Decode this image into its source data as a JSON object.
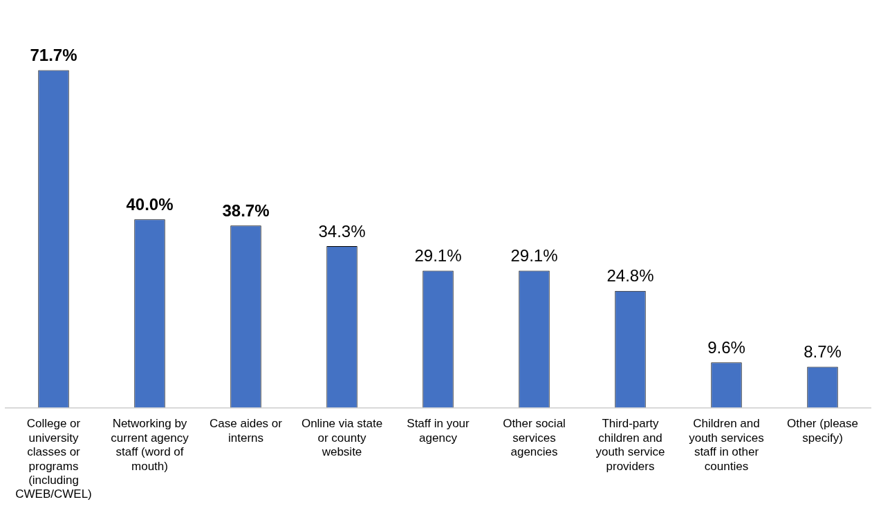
{
  "chart_data": {
    "type": "bar",
    "categories": [
      "College or university classes or programs (including CWEB/CWEL)",
      "Networking by current agency staff (word of mouth)",
      "Case aides or interns",
      "Online via state or county website",
      "Staff in your agency",
      "Other social services agencies",
      "Third-party children and youth service providers",
      "Children and youth services staff in other counties",
      "Other (please specify)"
    ],
    "values": [
      71.7,
      40.0,
      38.7,
      34.3,
      29.1,
      29.1,
      24.8,
      9.6,
      8.7
    ],
    "value_labels": [
      "71.7%",
      "40.0%",
      "38.7%",
      "34.3%",
      "29.1%",
      "29.1%",
      "24.8%",
      "9.6%",
      "8.7%"
    ],
    "color": "#4472c4",
    "grid": false,
    "legend": false
  }
}
